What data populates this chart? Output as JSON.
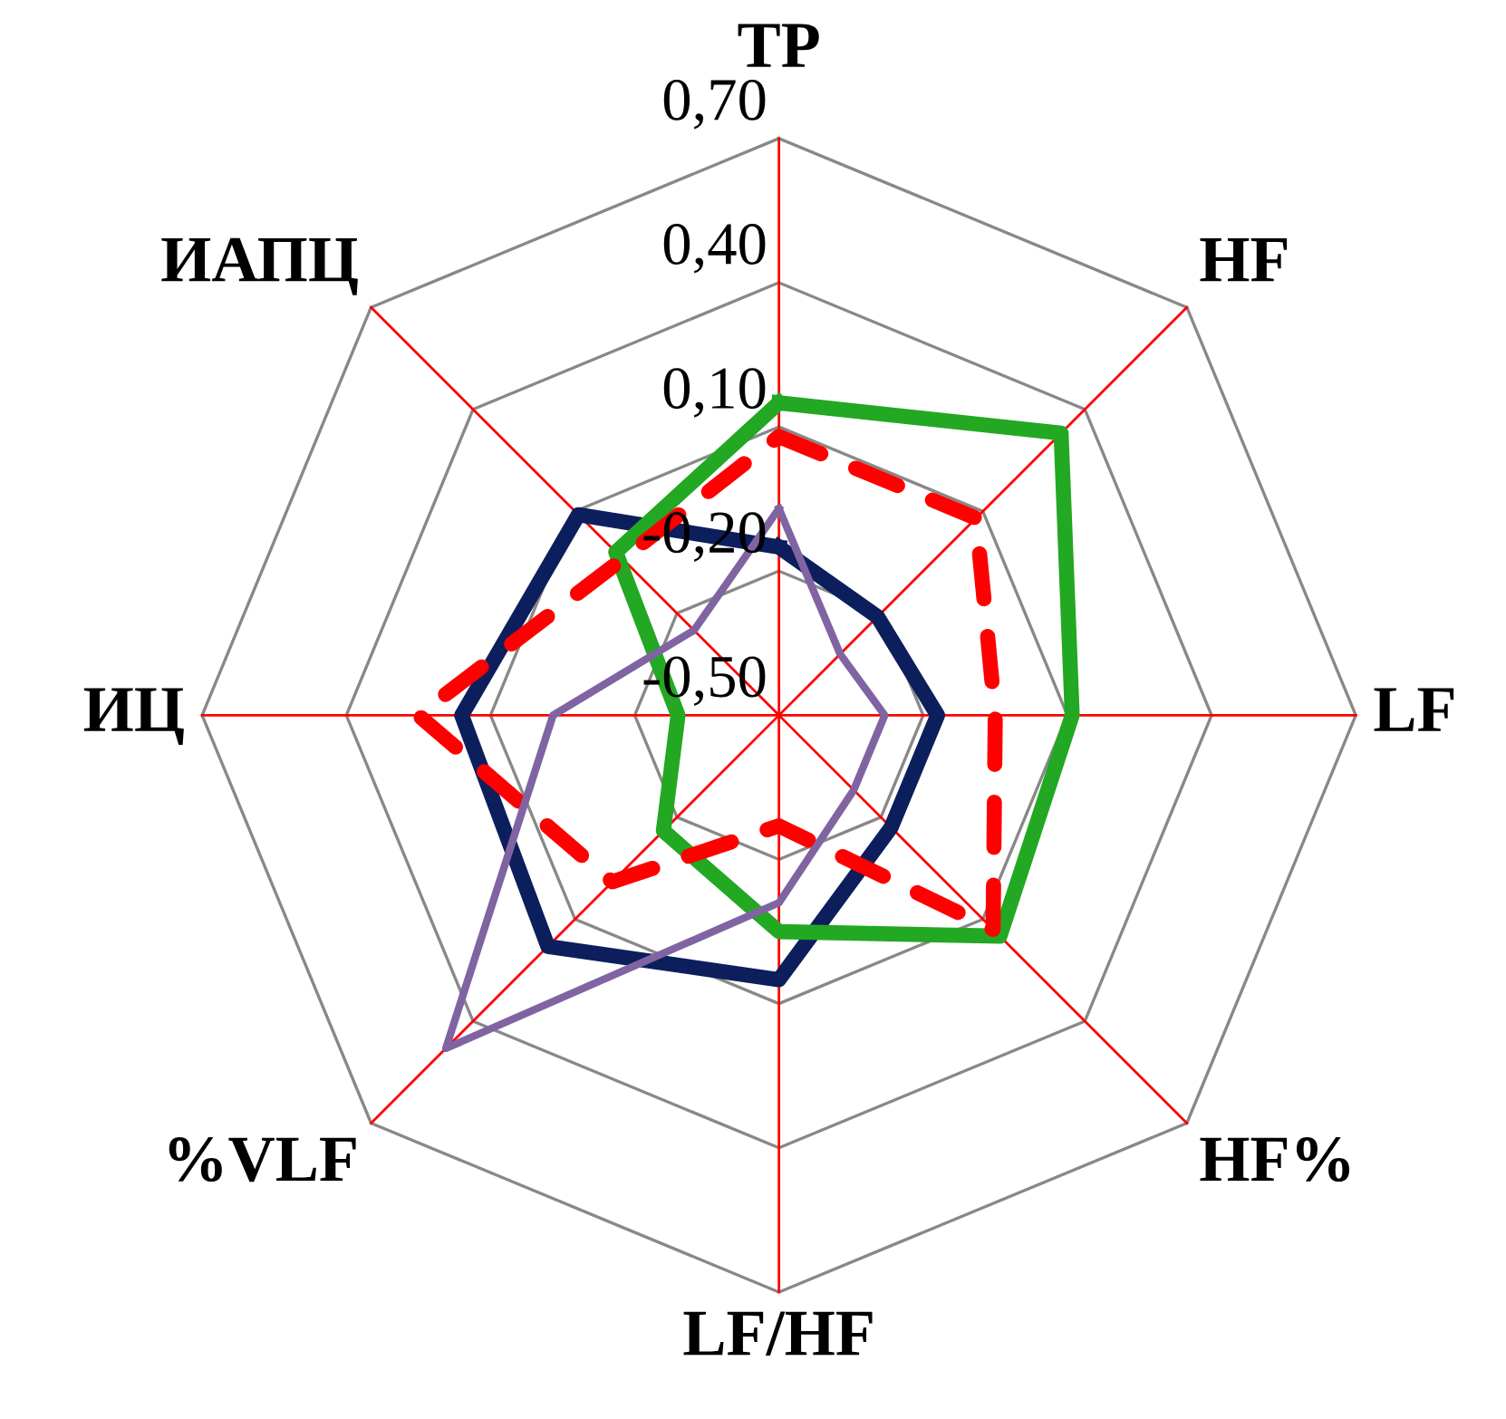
{
  "chart_data": {
    "type": "radar",
    "categories": [
      "TP",
      "HF",
      "LF",
      "HF%",
      "LF/HF",
      "%VLF",
      "ИЦ",
      "ИАПЦ"
    ],
    "ylim": [
      -0.5,
      0.7
    ],
    "yticks": [
      {
        "value": -0.5,
        "label": "-0,50"
      },
      {
        "value": -0.2,
        "label": "-0,20"
      },
      {
        "value": 0.1,
        "label": "0,10"
      },
      {
        "value": 0.4,
        "label": "0,40"
      },
      {
        "value": 0.7,
        "label": "0,70"
      }
    ],
    "grid": true,
    "series": [
      {
        "color": "#0c1f5c",
        "values": [
          -0.15,
          -0.21,
          -0.17,
          -0.17,
          0.05,
          0.18,
          0.16,
          0.09
        ],
        "line_style": "solid"
      },
      {
        "color": "#22a822",
        "values": [
          0.15,
          0.33,
          0.11,
          0.15,
          -0.05,
          -0.16,
          -0.29,
          -0.02
        ],
        "line_style": "solid"
      },
      {
        "color": "#ff0000",
        "values": [
          0.08,
          0.08,
          -0.05,
          0.13,
          -0.27,
          -0.01,
          0.25,
          -0.04
        ],
        "line_style": "dashed"
      },
      {
        "color": "#8064a2",
        "values": [
          -0.07,
          -0.32,
          -0.28,
          -0.28,
          -0.11,
          0.48,
          -0.03,
          -0.25
        ],
        "line_style": "solid"
      }
    ]
  }
}
